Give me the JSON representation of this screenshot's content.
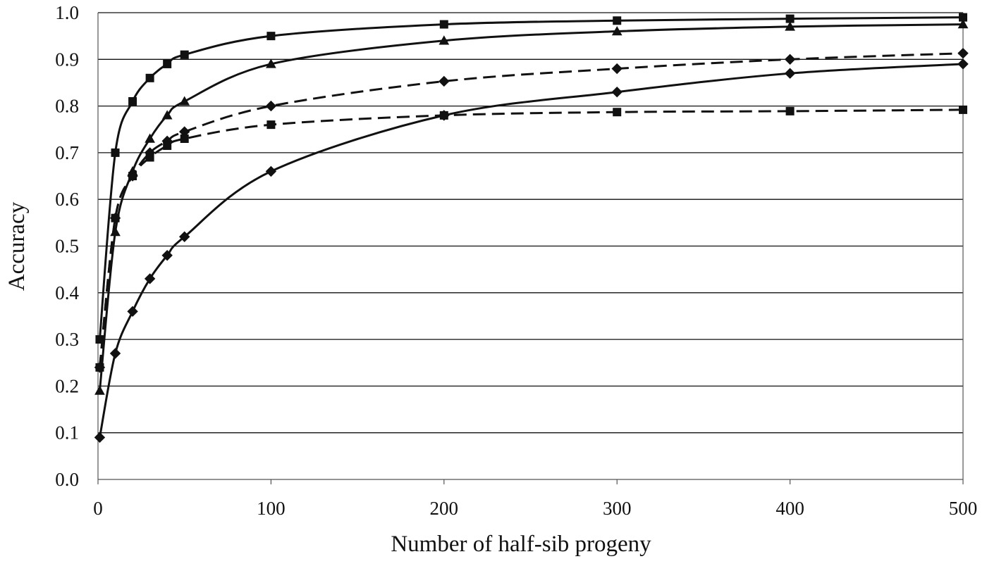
{
  "chart_data": {
    "type": "line",
    "xlabel": "Number of half-sib progeny",
    "ylabel": "Accuracy",
    "xlim": [
      0,
      500
    ],
    "ylim": [
      0.0,
      1.0
    ],
    "x_ticks": [
      "0",
      "100",
      "200",
      "300",
      "400",
      "500"
    ],
    "y_ticks": [
      "0.0",
      "0.1",
      "0.2",
      "0.3",
      "0.4",
      "0.5",
      "0.6",
      "0.7",
      "0.8",
      "0.9",
      "1.0"
    ],
    "grid": "horizontal",
    "legend": "none",
    "series": [
      {
        "line_style": "solid",
        "marker": "square",
        "x": [
          1,
          10,
          20,
          30,
          40,
          50,
          100,
          200,
          300,
          400,
          500
        ],
        "y": [
          0.3,
          0.7,
          0.81,
          0.86,
          0.89,
          0.91,
          0.95,
          0.975,
          0.983,
          0.987,
          0.99
        ]
      },
      {
        "line_style": "solid",
        "marker": "triangle",
        "x": [
          1,
          10,
          20,
          30,
          40,
          50,
          100,
          200,
          300,
          400,
          500
        ],
        "y": [
          0.19,
          0.53,
          0.66,
          0.73,
          0.78,
          0.81,
          0.89,
          0.94,
          0.96,
          0.97,
          0.975
        ]
      },
      {
        "line_style": "dashed",
        "marker": "diamond",
        "x": [
          1,
          10,
          20,
          30,
          40,
          50,
          100,
          200,
          300,
          400,
          500
        ],
        "y": [
          0.24,
          0.56,
          0.65,
          0.7,
          0.725,
          0.745,
          0.8,
          0.853,
          0.88,
          0.9,
          0.913
        ]
      },
      {
        "line_style": "dashed",
        "marker": "square",
        "x": [
          1,
          10,
          20,
          30,
          40,
          50,
          100,
          200,
          300,
          400,
          500
        ],
        "y": [
          0.24,
          0.56,
          0.65,
          0.69,
          0.715,
          0.73,
          0.76,
          0.78,
          0.787,
          0.789,
          0.792
        ]
      },
      {
        "line_style": "solid",
        "marker": "diamond",
        "x": [
          1,
          10,
          20,
          30,
          40,
          50,
          100,
          200,
          300,
          400,
          500
        ],
        "y": [
          0.09,
          0.27,
          0.36,
          0.43,
          0.48,
          0.52,
          0.66,
          0.78,
          0.83,
          0.87,
          0.89
        ]
      }
    ]
  }
}
